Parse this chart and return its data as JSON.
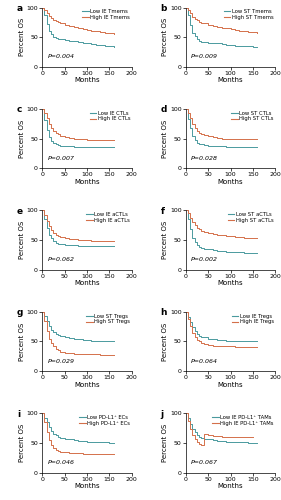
{
  "panels": [
    {
      "label": "a",
      "low_label": "Low IE Tmems",
      "high_label": "High IE Tmems",
      "pvalue": "P=0.004",
      "low_x": [
        0,
        5,
        10,
        15,
        20,
        25,
        30,
        35,
        40,
        50,
        60,
        70,
        80,
        90,
        100,
        110,
        120,
        130,
        140,
        150,
        160
      ],
      "low_y": [
        100,
        88,
        72,
        60,
        55,
        50,
        48,
        47,
        46,
        45,
        44,
        43,
        42,
        40,
        39,
        38,
        37,
        36,
        35,
        34,
        33
      ],
      "high_x": [
        0,
        5,
        10,
        15,
        20,
        25,
        30,
        35,
        40,
        50,
        60,
        70,
        80,
        90,
        100,
        110,
        120,
        130,
        140,
        150,
        160
      ],
      "high_y": [
        100,
        96,
        90,
        85,
        82,
        79,
        77,
        75,
        73,
        71,
        69,
        67,
        65,
        63,
        62,
        61,
        60,
        58,
        57,
        56,
        55
      ]
    },
    {
      "label": "b",
      "low_label": "Low ST Tmems",
      "high_label": "High ST Tmems",
      "pvalue": "P=0.009",
      "low_x": [
        0,
        5,
        10,
        15,
        20,
        25,
        30,
        35,
        40,
        50,
        60,
        70,
        80,
        90,
        100,
        110,
        120,
        130,
        140,
        150,
        160
      ],
      "low_y": [
        100,
        87,
        70,
        57,
        51,
        47,
        44,
        42,
        41,
        40,
        39,
        39,
        38,
        37,
        36,
        35,
        35,
        34,
        34,
        33,
        33
      ],
      "high_x": [
        0,
        5,
        10,
        15,
        20,
        25,
        30,
        35,
        40,
        50,
        60,
        70,
        80,
        90,
        100,
        110,
        120,
        130,
        140,
        150,
        160
      ],
      "high_y": [
        100,
        96,
        90,
        84,
        81,
        78,
        76,
        74,
        73,
        71,
        69,
        67,
        66,
        65,
        64,
        62,
        61,
        60,
        59,
        58,
        57
      ]
    },
    {
      "label": "c",
      "low_label": "Low IE CTLs",
      "high_label": "High IE CTLs",
      "pvalue": "P=0.007",
      "low_x": [
        0,
        5,
        10,
        15,
        20,
        25,
        30,
        35,
        40,
        50,
        60,
        70,
        80,
        90,
        100,
        110,
        120,
        130,
        140,
        150,
        160
      ],
      "low_y": [
        100,
        82,
        65,
        52,
        46,
        42,
        40,
        39,
        38,
        37,
        37,
        36,
        36,
        36,
        36,
        35,
        35,
        35,
        35,
        35,
        35
      ],
      "high_x": [
        0,
        5,
        10,
        15,
        20,
        25,
        30,
        35,
        40,
        50,
        60,
        70,
        80,
        90,
        100,
        110,
        120,
        130,
        140,
        150,
        160
      ],
      "high_y": [
        100,
        93,
        84,
        75,
        68,
        63,
        60,
        57,
        55,
        53,
        51,
        50,
        49,
        49,
        48,
        48,
        48,
        48,
        47,
        47,
        47
      ]
    },
    {
      "label": "d",
      "low_label": "Low ST CTLs",
      "high_label": "High ST CTLs",
      "pvalue": "P=0.028",
      "low_x": [
        0,
        5,
        10,
        15,
        20,
        25,
        30,
        35,
        40,
        50,
        60,
        70,
        80,
        90,
        100,
        110,
        120,
        130,
        140,
        150,
        160
      ],
      "low_y": [
        100,
        83,
        67,
        54,
        47,
        43,
        41,
        40,
        39,
        38,
        37,
        37,
        37,
        36,
        36,
        36,
        36,
        36,
        36,
        36,
        36
      ],
      "high_x": [
        0,
        5,
        10,
        15,
        20,
        25,
        30,
        35,
        40,
        50,
        60,
        70,
        80,
        90,
        100,
        110,
        120,
        130,
        140,
        150,
        160
      ],
      "high_y": [
        100,
        93,
        84,
        75,
        68,
        63,
        60,
        58,
        56,
        54,
        52,
        51,
        50,
        50,
        50,
        49,
        49,
        49,
        49,
        49,
        49
      ]
    },
    {
      "label": "e",
      "low_label": "Low IE aCTLs",
      "high_label": "High IE aCTLs",
      "pvalue": "P=0.062",
      "low_x": [
        0,
        5,
        10,
        15,
        20,
        25,
        30,
        35,
        40,
        50,
        60,
        70,
        80,
        90,
        100,
        110,
        120,
        130,
        140,
        150,
        160
      ],
      "low_y": [
        100,
        86,
        71,
        59,
        53,
        48,
        45,
        44,
        43,
        42,
        41,
        41,
        40,
        40,
        40,
        40,
        40,
        39,
        39,
        39,
        39
      ],
      "high_x": [
        0,
        5,
        10,
        15,
        20,
        25,
        30,
        35,
        40,
        50,
        60,
        70,
        80,
        90,
        100,
        110,
        120,
        130,
        140,
        150,
        160
      ],
      "high_y": [
        100,
        92,
        83,
        74,
        67,
        62,
        59,
        57,
        55,
        53,
        52,
        51,
        50,
        50,
        50,
        49,
        49,
        49,
        49,
        48,
        48
      ]
    },
    {
      "label": "f",
      "low_label": "Low ST aCTLs",
      "high_label": "High ST aCTLs",
      "pvalue": "P=0.002",
      "low_x": [
        0,
        5,
        10,
        15,
        20,
        25,
        30,
        35,
        40,
        50,
        60,
        70,
        80,
        90,
        100,
        110,
        120,
        130,
        140,
        150,
        160
      ],
      "low_y": [
        100,
        85,
        68,
        54,
        47,
        42,
        38,
        36,
        35,
        34,
        33,
        32,
        31,
        30,
        29,
        29,
        29,
        28,
        28,
        28,
        28
      ],
      "high_x": [
        0,
        5,
        10,
        15,
        20,
        25,
        30,
        35,
        40,
        50,
        60,
        70,
        80,
        90,
        100,
        110,
        120,
        130,
        140,
        150,
        160
      ],
      "high_y": [
        100,
        95,
        88,
        81,
        76,
        71,
        68,
        66,
        64,
        62,
        61,
        59,
        58,
        57,
        56,
        55,
        55,
        54,
        54,
        53,
        53
      ]
    },
    {
      "label": "g",
      "low_label": "Low ST Tregs",
      "high_label": "High ST Tregs",
      "pvalue": "P=0.029",
      "low_x": [
        0,
        5,
        10,
        15,
        20,
        25,
        30,
        35,
        40,
        50,
        60,
        70,
        80,
        90,
        100,
        110,
        120,
        130,
        140,
        150,
        160
      ],
      "low_y": [
        100,
        93,
        84,
        76,
        70,
        66,
        63,
        61,
        59,
        57,
        56,
        55,
        54,
        53,
        52,
        51,
        51,
        51,
        50,
        50,
        50
      ],
      "high_x": [
        0,
        5,
        10,
        15,
        20,
        25,
        30,
        35,
        40,
        50,
        60,
        70,
        80,
        90,
        100,
        110,
        120,
        130,
        140,
        150,
        160
      ],
      "high_y": [
        100,
        84,
        68,
        55,
        47,
        42,
        38,
        35,
        33,
        31,
        30,
        29,
        29,
        28,
        28,
        28,
        28,
        27,
        27,
        27,
        27
      ]
    },
    {
      "label": "h",
      "low_label": "Low IE Tregs",
      "high_label": "High IE Tregs",
      "pvalue": "P=0.064",
      "low_x": [
        0,
        5,
        10,
        15,
        20,
        25,
        30,
        35,
        40,
        50,
        60,
        70,
        80,
        90,
        100,
        110,
        120,
        130,
        140,
        150,
        160
      ],
      "low_y": [
        100,
        92,
        83,
        74,
        68,
        63,
        60,
        58,
        57,
        55,
        54,
        53,
        52,
        51,
        51,
        51,
        50,
        50,
        50,
        50,
        50
      ],
      "high_x": [
        0,
        5,
        10,
        15,
        20,
        25,
        30,
        35,
        40,
        50,
        60,
        70,
        80,
        90,
        100,
        110,
        120,
        130,
        140,
        150,
        160
      ],
      "high_y": [
        100,
        88,
        76,
        65,
        58,
        53,
        50,
        48,
        46,
        44,
        43,
        43,
        42,
        42,
        42,
        41,
        41,
        41,
        41,
        41,
        41
      ]
    },
    {
      "label": "i",
      "low_label": "Low PD-L1⁺ ECs",
      "high_label": "High PD-L1⁺ ECs",
      "pvalue": "P=0.046",
      "low_x": [
        0,
        5,
        10,
        15,
        20,
        25,
        30,
        35,
        40,
        50,
        60,
        70,
        80,
        90,
        100,
        110,
        120,
        130,
        140,
        150,
        160
      ],
      "low_y": [
        100,
        93,
        85,
        77,
        71,
        66,
        63,
        61,
        59,
        57,
        56,
        55,
        54,
        53,
        52,
        52,
        51,
        51,
        51,
        50,
        50
      ],
      "high_x": [
        0,
        5,
        10,
        15,
        20,
        25,
        30,
        35,
        40,
        50,
        60,
        70,
        80,
        90,
        100,
        110,
        120,
        130,
        140,
        150,
        160
      ],
      "high_y": [
        100,
        85,
        68,
        55,
        47,
        42,
        38,
        36,
        35,
        34,
        33,
        33,
        33,
        32,
        32,
        32,
        32,
        32,
        32,
        32,
        32
      ]
    },
    {
      "label": "j",
      "low_label": "Low IE PD-L1⁺ TAMs",
      "high_label": "High IE PD-L1⁺ TAMs",
      "pvalue": "P=0.067",
      "low_x": [
        0,
        5,
        10,
        15,
        20,
        25,
        30,
        35,
        40,
        50,
        60,
        70,
        80,
        90,
        100,
        110,
        120,
        130,
        140,
        150,
        160
      ],
      "low_y": [
        100,
        92,
        83,
        74,
        68,
        64,
        61,
        59,
        57,
        56,
        55,
        54,
        53,
        52,
        52,
        51,
        51,
        51,
        50,
        50,
        50
      ],
      "high_x": [
        0,
        5,
        10,
        15,
        20,
        25,
        30,
        35,
        40,
        50,
        60,
        70,
        80,
        90,
        100,
        110,
        120,
        130,
        140,
        150
      ],
      "high_y": [
        100,
        88,
        74,
        63,
        56,
        51,
        48,
        46,
        65,
        63,
        62,
        62,
        61,
        61,
        61,
        60,
        60,
        60,
        60,
        60
      ]
    }
  ],
  "low_color": "#4a9a9e",
  "high_color": "#d4704a",
  "xlabel": "Months",
  "ylabel": "Percent OS",
  "xlim": [
    0,
    200
  ],
  "ylim": [
    0,
    100
  ],
  "xticks": [
    0,
    50,
    100,
    150,
    200
  ],
  "yticks": [
    0,
    50,
    100
  ]
}
